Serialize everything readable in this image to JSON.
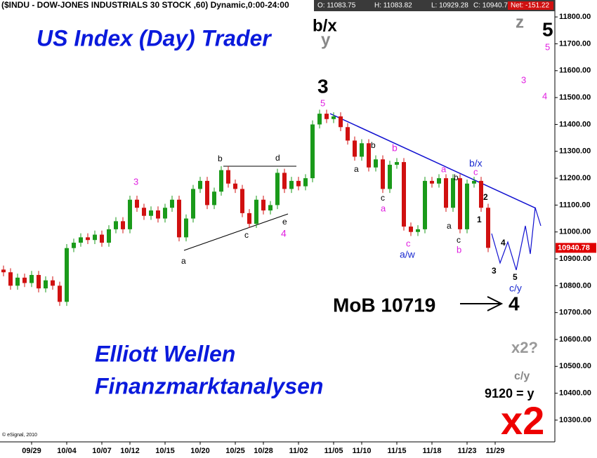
{
  "chart_data": {
    "type": "candlestick",
    "title": "($INDU - DOW-JONES INDUSTRIALS 30 STOCK ,60) Dynamic,0:00-24:00",
    "header": {
      "open": "O: 11083.75",
      "high": "H: 11083.82",
      "low": "L: 10929.28",
      "close": "C: 10940.78",
      "net": "Net: -151.22"
    },
    "up_color": "#1a9a1a",
    "down_color": "#d01010",
    "open": [
      10860,
      10850,
      10800,
      10830,
      10810,
      10840,
      10790,
      10820,
      10800,
      10740,
      10940,
      10960,
      10980,
      10970,
      10990,
      10960,
      11010,
      11040,
      11010,
      11120,
      11090,
      11060,
      11080,
      11050,
      11090,
      11120,
      10980,
      11050,
      11160,
      11190,
      11100,
      11150,
      11230,
      11180,
      11160,
      11070,
      11030,
      11120,
      11080,
      11100,
      11220,
      11160,
      11190,
      11170,
      11200,
      11400,
      11440,
      11420,
      11430,
      11390,
      11340,
      11280,
      11330,
      11240,
      11270,
      11160,
      11250,
      11260,
      11020,
      11000,
      11010,
      11190,
      11180,
      11200,
      11090,
      11200,
      11010,
      11180,
      11190,
      11090
    ],
    "high": [
      10875,
      10865,
      10845,
      10845,
      10855,
      10855,
      10835,
      10835,
      10815,
      10955,
      10975,
      10995,
      10995,
      11005,
      11005,
      11025,
      11055,
      11055,
      11135,
      11135,
      11105,
      11095,
      11095,
      11105,
      11135,
      11135,
      11065,
      11175,
      11205,
      11205,
      11165,
      11245,
      11245,
      11195,
      11175,
      11085,
      11135,
      11135,
      11115,
      11235,
      11235,
      11205,
      11205,
      11215,
      11415,
      11455,
      11455,
      11445,
      11445,
      11405,
      11355,
      11345,
      11345,
      11285,
      11285,
      11265,
      11275,
      11275,
      11035,
      11025,
      11205,
      11205,
      11215,
      11215,
      11215,
      11215,
      11195,
      11205,
      11205,
      11105
    ],
    "low": [
      10835,
      10785,
      10785,
      10795,
      10795,
      10775,
      10775,
      10785,
      10725,
      10725,
      10925,
      10945,
      10955,
      10955,
      10945,
      10945,
      10995,
      10995,
      10995,
      11075,
      11045,
      11045,
      11035,
      11035,
      11075,
      10965,
      10965,
      11035,
      11145,
      11085,
      11085,
      11135,
      11165,
      11145,
      11055,
      11015,
      11015,
      11065,
      11065,
      11085,
      11145,
      11145,
      11155,
      11155,
      11185,
      11385,
      11405,
      11405,
      11375,
      11325,
      11265,
      11265,
      11225,
      11225,
      11145,
      11145,
      11235,
      11005,
      10985,
      10985,
      10995,
      11165,
      11165,
      11075,
      11075,
      10995,
      10995,
      11165,
      11075,
      10925
    ],
    "close": [
      10850,
      10800,
      10830,
      10810,
      10840,
      10790,
      10820,
      10800,
      10740,
      10940,
      10960,
      10980,
      10970,
      10990,
      10960,
      11010,
      11040,
      11010,
      11120,
      11090,
      11060,
      11080,
      11050,
      11090,
      11120,
      10980,
      11050,
      11160,
      11190,
      11100,
      11150,
      11230,
      11180,
      11160,
      11070,
      11030,
      11120,
      11080,
      11100,
      11220,
      11160,
      11190,
      11170,
      11200,
      11400,
      11440,
      11420,
      11430,
      11390,
      11340,
      11280,
      11330,
      11240,
      11270,
      11160,
      11250,
      11260,
      11020,
      11000,
      11010,
      11190,
      11180,
      11200,
      11090,
      11200,
      11010,
      11180,
      11190,
      11090,
      10940.78
    ],
    "xlim": [
      -0.5,
      78.5
    ],
    "xticks": [
      {
        "value": 4,
        "label": "09/29"
      },
      {
        "value": 9,
        "label": "10/04"
      },
      {
        "value": 14,
        "label": "10/07"
      },
      {
        "value": 18,
        "label": "10/12"
      },
      {
        "value": 23,
        "label": "10/15"
      },
      {
        "value": 28,
        "label": "10/20"
      },
      {
        "value": 33,
        "label": "10/25"
      },
      {
        "value": 37,
        "label": "10/28"
      },
      {
        "value": 42,
        "label": "11/02"
      },
      {
        "value": 47,
        "label": "11/05"
      },
      {
        "value": 51,
        "label": "11/10"
      },
      {
        "value": 56,
        "label": "11/15"
      },
      {
        "value": 61,
        "label": "11/18"
      },
      {
        "value": 66,
        "label": "11/23"
      },
      {
        "value": 70,
        "label": "11/29"
      }
    ],
    "ylim": [
      10219,
      11863
    ],
    "yticks": [
      {
        "value": 10300,
        "label": "10300.00"
      },
      {
        "value": 10400,
        "label": "10400.00"
      },
      {
        "value": 10500,
        "label": "10500.00"
      },
      {
        "value": 10600,
        "label": "10600.00"
      },
      {
        "value": 10700,
        "label": "10700.00"
      },
      {
        "value": 10800,
        "label": "10800.00"
      },
      {
        "value": 10900,
        "label": "10900.00"
      },
      {
        "value": 11000,
        "label": "11000.00"
      },
      {
        "value": 11100,
        "label": "11100.00"
      },
      {
        "value": 11200,
        "label": "11200.00"
      },
      {
        "value": 11300,
        "label": "11300.00"
      },
      {
        "value": 11400,
        "label": "11400.00"
      },
      {
        "value": 11500,
        "label": "11500.00"
      },
      {
        "value": 11600,
        "label": "11600.00"
      },
      {
        "value": 11700,
        "label": "11700.00"
      },
      {
        "value": 11800,
        "label": "11800.00"
      }
    ],
    "annotations": [
      {
        "text": "US Index (Day) Trader",
        "color": "#0a1adc"
      },
      {
        "text": "b/x",
        "color": "#000000"
      },
      {
        "text": "y",
        "color": "#888888"
      },
      {
        "text": "z",
        "color": "#888888"
      },
      {
        "text": "5",
        "color": "#000000"
      },
      {
        "text": "5",
        "color": "#e020e0"
      },
      {
        "text": "3",
        "color": "#e020e0"
      },
      {
        "text": "4",
        "color": "#e020e0"
      },
      {
        "text": "3",
        "color": "#000000"
      },
      {
        "text": "5",
        "color": "#e020e0"
      },
      {
        "text": "3",
        "color": "#e020e0"
      },
      {
        "text": "b",
        "color": "#000000"
      },
      {
        "text": "d",
        "color": "#000000"
      },
      {
        "text": "a",
        "color": "#000000"
      },
      {
        "text": "c",
        "color": "#000000"
      },
      {
        "text": "e",
        "color": "#000000"
      },
      {
        "text": "4",
        "color": "#e020e0"
      },
      {
        "text": "b",
        "color": "#000000"
      },
      {
        "text": "b",
        "color": "#e020e0"
      },
      {
        "text": "a",
        "color": "#000000"
      },
      {
        "text": "c",
        "color": "#000000"
      },
      {
        "text": "a",
        "color": "#e020e0"
      },
      {
        "text": "c",
        "color": "#e020e0"
      },
      {
        "text": "a/w",
        "color": "#1a2ad0"
      },
      {
        "text": "a",
        "color": "#e020e0"
      },
      {
        "text": "b/x",
        "color": "#1a2ad0"
      },
      {
        "text": "c",
        "color": "#e020e0"
      },
      {
        "text": "b",
        "color": "#000000"
      },
      {
        "text": "2",
        "color": "#000000"
      },
      {
        "text": "a",
        "color": "#000000"
      },
      {
        "text": "1",
        "color": "#000000"
      },
      {
        "text": "c",
        "color": "#000000"
      },
      {
        "text": "b",
        "color": "#e020e0"
      },
      {
        "text": "4",
        "color": "#000000"
      },
      {
        "text": "3",
        "color": "#000000"
      },
      {
        "text": "5",
        "color": "#000000"
      },
      {
        "text": "c/y",
        "color": "#1a2ad0"
      },
      {
        "text": "MoB 10719",
        "color": "#000000"
      },
      {
        "text": "4",
        "color": "#000000"
      },
      {
        "text": "Elliott Wellen",
        "color": "#0a1adc"
      },
      {
        "text": "Finanzmarktanalysen",
        "color": "#0a1adc"
      },
      {
        "text": "x2?",
        "color": "#999999"
      },
      {
        "text": "c/y",
        "color": "#888888"
      },
      {
        "text": "9120 = y",
        "color": "#000000"
      },
      {
        "text": "x2",
        "color": "#ee0000"
      },
      {
        "text": "© eSignal, 2010",
        "color": "#000000"
      }
    ]
  }
}
